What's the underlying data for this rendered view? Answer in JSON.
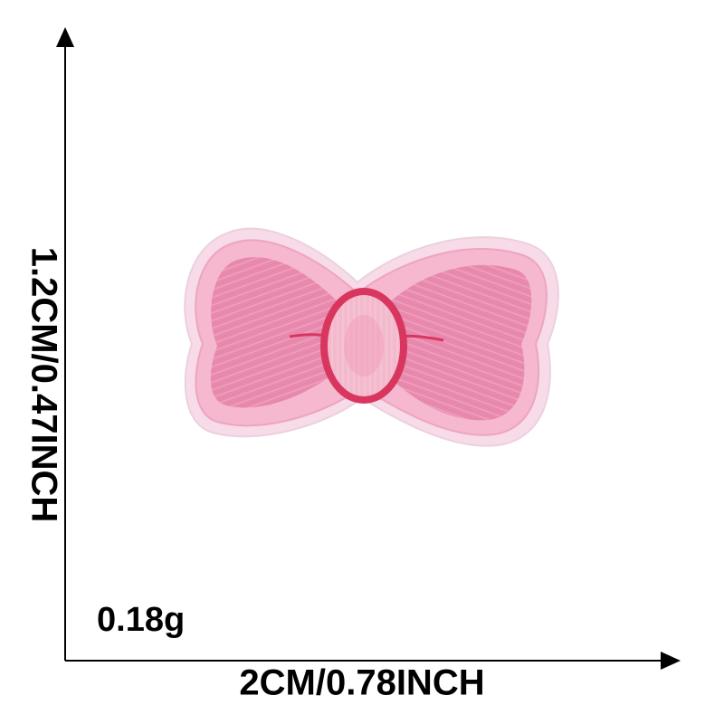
{
  "dimensions": {
    "height": "1.2CM/0.47INCH",
    "width": "2CM/0.78INCH",
    "weight": "0.18g"
  },
  "product": {
    "icon": "embroidered-bow-patch-icon",
    "colors": {
      "border": "#f7dbe8",
      "outer_stitch": "#f5b8cf",
      "fill": "#e889ad",
      "knot_fill": "#f3b9cc",
      "knot_outline": "#d9365f"
    }
  },
  "axis_color": "#000000"
}
